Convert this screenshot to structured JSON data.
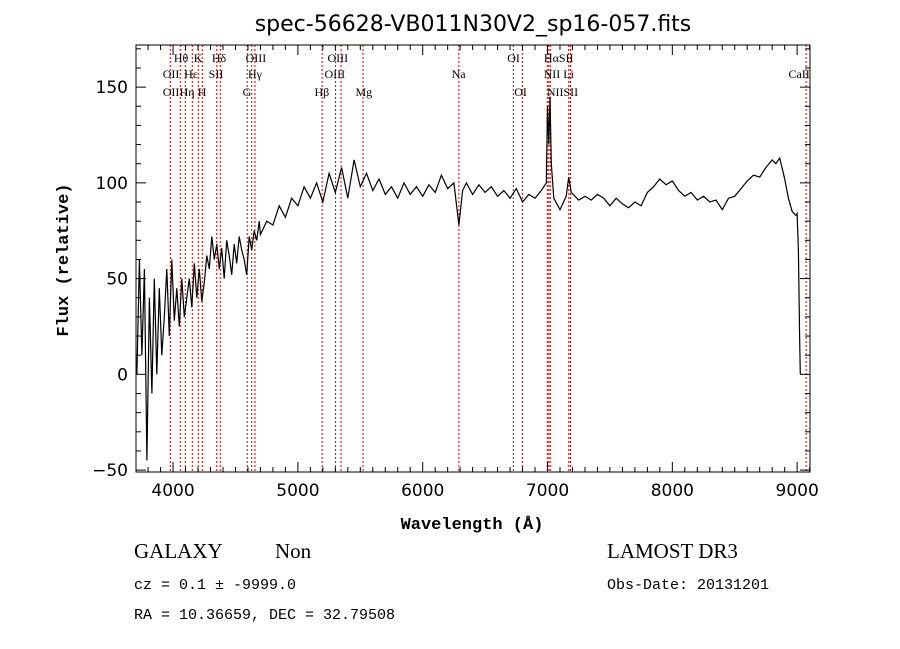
{
  "chart_data": {
    "type": "line",
    "title": "spec-56628-VB011N30V2_sp16-057.fits",
    "xlabel": "Wavelength (Å)",
    "ylabel": "Flux (relative)",
    "xlim": [
      3703,
      9103
    ],
    "ylim": [
      -51,
      172
    ],
    "xticks": [
      4000,
      5000,
      6000,
      7000,
      8000,
      9000
    ],
    "xtick_labels": [
      "4000",
      "5000",
      "6000",
      "7000",
      "8000",
      "9000"
    ],
    "yticks": [
      -50,
      0,
      50,
      100,
      150
    ],
    "ytick_labels": [
      "−50",
      "0",
      "50",
      "100",
      "150"
    ],
    "grid": false,
    "series": [
      {
        "name": "spectrum",
        "color": "#000000",
        "x": [
          3710,
          3730,
          3750,
          3770,
          3790,
          3810,
          3830,
          3850,
          3870,
          3890,
          3910,
          3930,
          3950,
          3970,
          3990,
          4010,
          4030,
          4050,
          4070,
          4090,
          4110,
          4130,
          4150,
          4170,
          4190,
          4210,
          4230,
          4250,
          4270,
          4290,
          4310,
          4330,
          4350,
          4370,
          4390,
          4410,
          4430,
          4450,
          4470,
          4490,
          4510,
          4530,
          4550,
          4570,
          4590,
          4610,
          4630,
          4650,
          4670,
          4690,
          4700,
          4750,
          4800,
          4850,
          4900,
          4950,
          5000,
          5050,
          5100,
          5150,
          5200,
          5250,
          5300,
          5350,
          5400,
          5450,
          5500,
          5550,
          5600,
          5650,
          5700,
          5750,
          5800,
          5850,
          5900,
          5950,
          6000,
          6050,
          6100,
          6150,
          6200,
          6250,
          6290,
          6320,
          6350,
          6400,
          6450,
          6500,
          6550,
          6600,
          6650,
          6700,
          6750,
          6800,
          6850,
          6900,
          6950,
          6990,
          7000,
          7010,
          7020,
          7030,
          7050,
          7100,
          7150,
          7170,
          7190,
          7250,
          7300,
          7350,
          7400,
          7450,
          7500,
          7550,
          7600,
          7650,
          7700,
          7750,
          7800,
          7850,
          7900,
          7950,
          8000,
          8050,
          8100,
          8150,
          8200,
          8250,
          8300,
          8350,
          8400,
          8450,
          8500,
          8550,
          8600,
          8650,
          8700,
          8750,
          8800,
          8830,
          8860,
          8900,
          8930,
          8960,
          8990,
          9000,
          9010,
          9020,
          9025
        ],
        "y": [
          0,
          60,
          10,
          55,
          -45,
          40,
          -10,
          50,
          0,
          45,
          10,
          30,
          55,
          20,
          60,
          28,
          45,
          25,
          50,
          30,
          40,
          50,
          35,
          58,
          40,
          55,
          38,
          48,
          62,
          55,
          72,
          60,
          68,
          55,
          66,
          50,
          70,
          62,
          52,
          68,
          58,
          72,
          65,
          60,
          52,
          72,
          65,
          75,
          70,
          80,
          73,
          80,
          78,
          88,
          82,
          92,
          88,
          98,
          92,
          100,
          90,
          105,
          95,
          108,
          92,
          112,
          98,
          105,
          96,
          102,
          94,
          98,
          92,
          100,
          94,
          98,
          93,
          99,
          95,
          104,
          97,
          100,
          78,
          96,
          100,
          94,
          99,
          95,
          98,
          93,
          96,
          92,
          97,
          90,
          94,
          92,
          96,
          100,
          140,
          120,
          145,
          110,
          92,
          86,
          93,
          103,
          95,
          91,
          93,
          91,
          94,
          92,
          88,
          92,
          89,
          87,
          90,
          88,
          95,
          98,
          102,
          99,
          101,
          96,
          93,
          95,
          91,
          93,
          90,
          91,
          86,
          92,
          93,
          97,
          101,
          104,
          103,
          108,
          112,
          110,
          113,
          102,
          92,
          85,
          83,
          84,
          65,
          20,
          0
        ]
      }
    ],
    "line_markers": {
      "color": "#cc0000",
      "wavelengths": [
        3978,
        4058,
        4098,
        4154,
        4202,
        4234,
        4350,
        4378,
        4594,
        4630,
        4656,
        5194,
        5302,
        5346,
        5522,
        6290,
        6726,
        6798,
        6998,
        7010,
        7022,
        7170,
        7184,
        9072
      ]
    },
    "line_labels": [
      {
        "text": "Hθ",
        "wavelength": 4064
      },
      {
        "text": "K",
        "wavelength": 4200
      },
      {
        "text": "Hδ",
        "wavelength": 4368
      },
      {
        "text": "OIII",
        "wavelength": 4664
      },
      {
        "text": "OIII",
        "wavelength": 5320
      },
      {
        "text": "OI",
        "wavelength": 6728
      },
      {
        "text": "HαSII",
        "wavelength": 7090
      },
      {
        "text": "OII",
        "wavelength": 3984
      },
      {
        "text": "Hε",
        "wavelength": 4144
      },
      {
        "text": "SII",
        "wavelength": 4344
      },
      {
        "text": "Hγ",
        "wavelength": 4656
      },
      {
        "text": "OIII",
        "wavelength": 5296
      },
      {
        "text": "Na",
        "wavelength": 6288
      },
      {
        "text": "NII Li",
        "wavelength": 7090
      },
      {
        "text": "CaII",
        "wavelength": 9016
      },
      {
        "text": "OII",
        "wavelength": 3984
      },
      {
        "text": "Hη",
        "wavelength": 4112
      },
      {
        "text": "H",
        "wavelength": 4232
      },
      {
        "text": "G",
        "wavelength": 4592
      },
      {
        "text": "Hβ",
        "wavelength": 5192
      },
      {
        "text": "Mg",
        "wavelength": 5528
      },
      {
        "text": "OI",
        "wavelength": 6784
      },
      {
        "text": "NIISII",
        "wavelength": 7120
      }
    ]
  },
  "info": {
    "object_class": "GALAXY",
    "subclass": "Non",
    "redshift": "cz = 0.1 ± -9999.0",
    "coords": "RA =  10.36659, DEC =  32.79508",
    "survey": "LAMOST DR3",
    "obs_date": "Obs-Date: 20131201"
  }
}
